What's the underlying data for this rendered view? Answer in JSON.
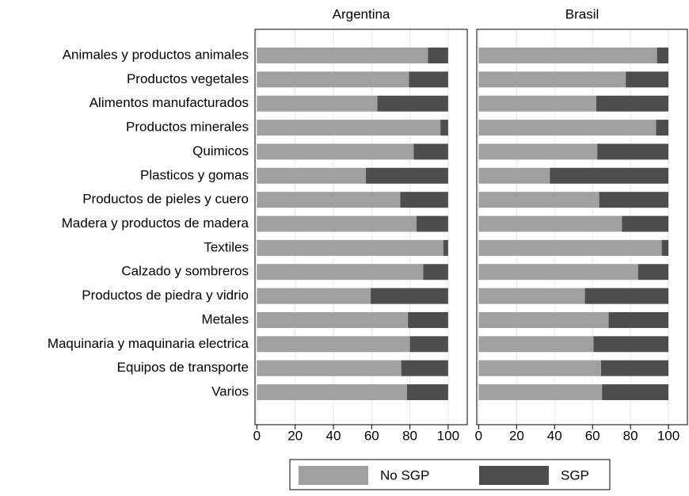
{
  "chart_data": {
    "type": "stacked-barh",
    "categories": [
      "Animales y productos animales",
      "Productos vegetales",
      "Alimentos manufacturados",
      "Productos minerales",
      "Quimicos",
      "Plasticos y gomas",
      "Productos de pieles y cuero",
      "Madera y productos de madera",
      "Textiles",
      "Calzado y sombreros",
      "Productos de piedra y vidrio",
      "Metales",
      "Maquinaria y maquinaria electrica",
      "Equipos de transporte",
      "Varios"
    ],
    "xlim": [
      -1,
      110
    ],
    "xticks": [
      0,
      20,
      40,
      60,
      80,
      100
    ],
    "grid": true,
    "legend": "bottom",
    "panels": [
      {
        "title": "Argentina",
        "series": [
          {
            "name": "No SGP",
            "color": "#a0a0a0",
            "values": [
              89.5,
              79.5,
              63,
              96,
              82,
              57,
              75,
              83.5,
              97.5,
              87,
              59.5,
              79,
              80,
              75.5,
              78.5
            ]
          },
          {
            "name": "SGP",
            "color": "#4d4d4d",
            "values": [
              10.5,
              20.5,
              37,
              4,
              18,
              43,
              25,
              16.5,
              2.5,
              13,
              40.5,
              21,
              20,
              24.5,
              21.5
            ]
          }
        ]
      },
      {
        "title": "Brasil",
        "series": [
          {
            "name": "No SGP",
            "color": "#a0a0a0",
            "values": [
              94,
              77.5,
              62,
              93.5,
              62.5,
              37.5,
              63.5,
              75.5,
              96.5,
              84,
              56,
              68.5,
              60.5,
              64.5,
              65
            ]
          },
          {
            "name": "SGP",
            "color": "#4d4d4d",
            "values": [
              6,
              22.5,
              38,
              6.5,
              37.5,
              62.5,
              36.5,
              24.5,
              3.5,
              16,
              44,
              31.5,
              39.5,
              35.5,
              35
            ]
          }
        ]
      }
    ]
  }
}
